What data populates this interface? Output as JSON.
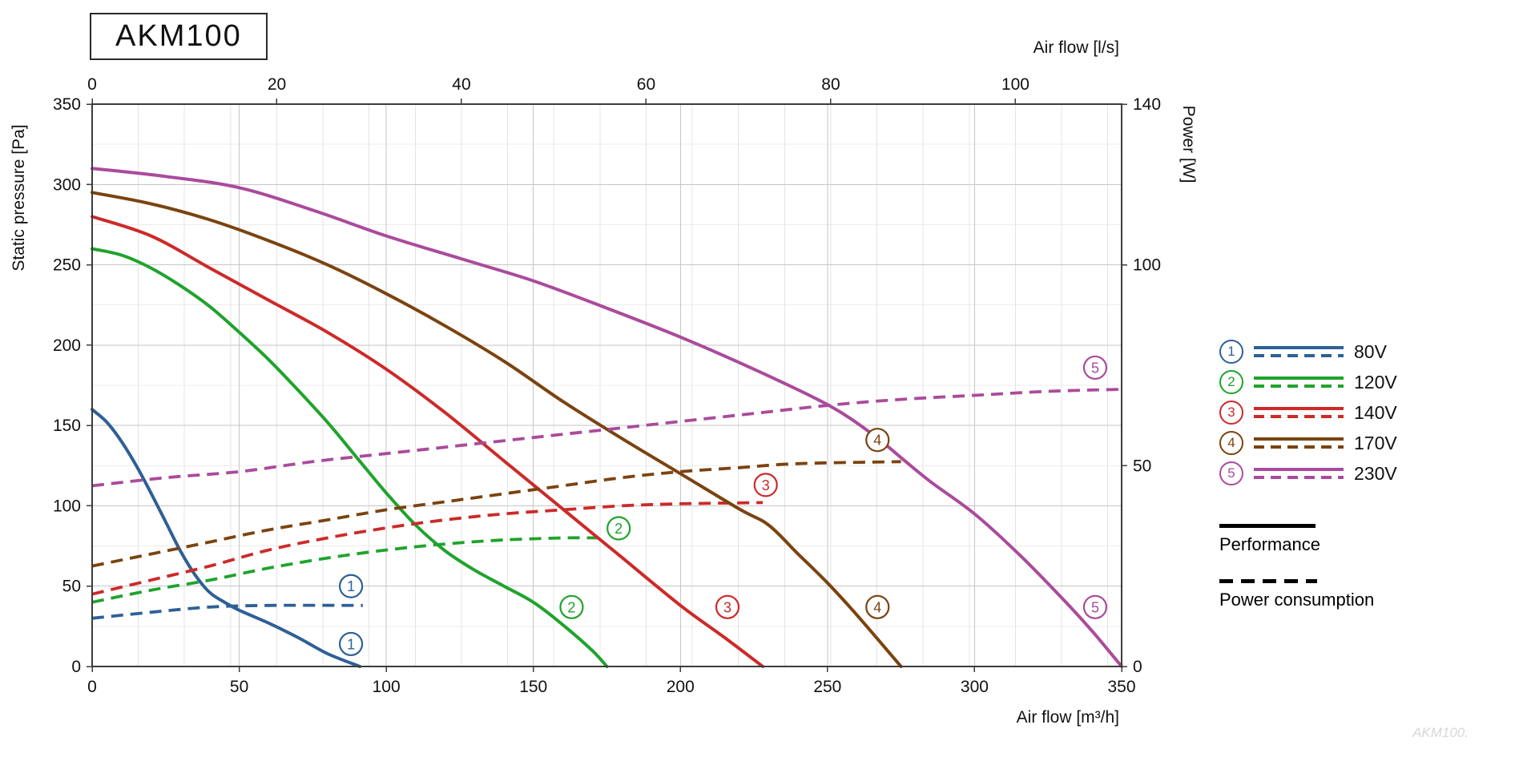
{
  "title_box": {
    "label": "AKM100"
  },
  "watermark": "AKM100.",
  "chart_data": {
    "type": "line",
    "title": "AKM100",
    "axes": {
      "bottom": {
        "label": "Air flow [m³/h]",
        "min": 0,
        "max": 350,
        "ticks": [
          0,
          50,
          100,
          150,
          200,
          250,
          300,
          350
        ]
      },
      "top": {
        "label": "Air flow [l/s]",
        "ticks": [
          0,
          20,
          40,
          60,
          80,
          100
        ],
        "scale_max": 111.5
      },
      "left": {
        "label": "Static pressure [Pa]",
        "min": 0,
        "max": 350,
        "ticks": [
          0,
          50,
          100,
          150,
          200,
          250,
          300,
          350
        ]
      },
      "right": {
        "label": "Power [W]",
        "min": 0,
        "max": 140,
        "ticks": [
          0,
          50,
          100,
          140
        ]
      }
    },
    "grid": {
      "h_major": 50,
      "h_minor": 25,
      "v_minor_ls": 5
    },
    "series": [
      {
        "num": 1,
        "name": "80V",
        "color": "#2e6096",
        "performance": [
          [
            0,
            160
          ],
          [
            5,
            152
          ],
          [
            10,
            140
          ],
          [
            15,
            125
          ],
          [
            20,
            108
          ],
          [
            25,
            90
          ],
          [
            30,
            72
          ],
          [
            35,
            57
          ],
          [
            40,
            46
          ],
          [
            45,
            40
          ],
          [
            50,
            35
          ],
          [
            60,
            27
          ],
          [
            70,
            18
          ],
          [
            80,
            8
          ],
          [
            91,
            0
          ]
        ],
        "power_w": [
          [
            0,
            12
          ],
          [
            20,
            13.5
          ],
          [
            40,
            14.8
          ],
          [
            60,
            15.2
          ],
          [
            92,
            15.2
          ]
        ]
      },
      {
        "num": 2,
        "name": "120V",
        "color": "#1fa32c",
        "performance": [
          [
            0,
            260
          ],
          [
            10,
            256
          ],
          [
            20,
            248
          ],
          [
            30,
            237
          ],
          [
            40,
            224
          ],
          [
            50,
            208
          ],
          [
            60,
            191
          ],
          [
            70,
            172
          ],
          [
            80,
            152
          ],
          [
            90,
            130
          ],
          [
            100,
            108
          ],
          [
            110,
            88
          ],
          [
            120,
            72
          ],
          [
            130,
            60
          ],
          [
            140,
            50
          ],
          [
            150,
            40
          ],
          [
            160,
            26
          ],
          [
            170,
            10
          ],
          [
            175,
            0
          ]
        ],
        "power_w": [
          [
            0,
            16
          ],
          [
            20,
            19
          ],
          [
            40,
            21.5
          ],
          [
            60,
            24.5
          ],
          [
            80,
            27
          ],
          [
            100,
            29
          ],
          [
            120,
            30.5
          ],
          [
            140,
            31.5
          ],
          [
            160,
            32
          ],
          [
            172,
            32
          ]
        ]
      },
      {
        "num": 3,
        "name": "140V",
        "color": "#cc2a29",
        "performance": [
          [
            0,
            280
          ],
          [
            20,
            268
          ],
          [
            40,
            248
          ],
          [
            60,
            228
          ],
          [
            80,
            208
          ],
          [
            100,
            185
          ],
          [
            120,
            158
          ],
          [
            140,
            128
          ],
          [
            160,
            98
          ],
          [
            180,
            68
          ],
          [
            200,
            38
          ],
          [
            215,
            18
          ],
          [
            228,
            0
          ]
        ],
        "power_w": [
          [
            0,
            18
          ],
          [
            20,
            21.5
          ],
          [
            40,
            25
          ],
          [
            60,
            29
          ],
          [
            80,
            32
          ],
          [
            100,
            34.5
          ],
          [
            120,
            36.5
          ],
          [
            140,
            38
          ],
          [
            160,
            39
          ],
          [
            180,
            40
          ],
          [
            200,
            40.5
          ],
          [
            228,
            40.8
          ]
        ]
      },
      {
        "num": 4,
        "name": "170V",
        "color": "#7b430f",
        "performance": [
          [
            0,
            295
          ],
          [
            20,
            288
          ],
          [
            40,
            278
          ],
          [
            60,
            265
          ],
          [
            80,
            250
          ],
          [
            100,
            232
          ],
          [
            120,
            212
          ],
          [
            140,
            190
          ],
          [
            160,
            165
          ],
          [
            180,
            142
          ],
          [
            200,
            120
          ],
          [
            220,
            98
          ],
          [
            230,
            88
          ],
          [
            240,
            70
          ],
          [
            250,
            52
          ],
          [
            260,
            32
          ],
          [
            275,
            0
          ]
        ],
        "power_w": [
          [
            0,
            25
          ],
          [
            20,
            28
          ],
          [
            40,
            31
          ],
          [
            60,
            34
          ],
          [
            80,
            36.5
          ],
          [
            100,
            39
          ],
          [
            120,
            41
          ],
          [
            140,
            43
          ],
          [
            160,
            45
          ],
          [
            180,
            47
          ],
          [
            200,
            48.5
          ],
          [
            220,
            49.5
          ],
          [
            240,
            50.5
          ],
          [
            275,
            51
          ]
        ]
      },
      {
        "num": 5,
        "name": "230V",
        "color": "#aa4b9b",
        "performance": [
          [
            0,
            310
          ],
          [
            25,
            305
          ],
          [
            50,
            298
          ],
          [
            75,
            284
          ],
          [
            100,
            268
          ],
          [
            125,
            254
          ],
          [
            150,
            240
          ],
          [
            175,
            223
          ],
          [
            200,
            205
          ],
          [
            225,
            185
          ],
          [
            250,
            163
          ],
          [
            265,
            145
          ],
          [
            275,
            130
          ],
          [
            285,
            115
          ],
          [
            300,
            95
          ],
          [
            315,
            70
          ],
          [
            330,
            42
          ],
          [
            340,
            22
          ],
          [
            350,
            0
          ]
        ],
        "power_w": [
          [
            0,
            45
          ],
          [
            25,
            47
          ],
          [
            50,
            48.5
          ],
          [
            75,
            51
          ],
          [
            100,
            53
          ],
          [
            125,
            55
          ],
          [
            150,
            57
          ],
          [
            175,
            59
          ],
          [
            200,
            61
          ],
          [
            225,
            63
          ],
          [
            250,
            65
          ],
          [
            275,
            66.5
          ],
          [
            300,
            67.5
          ],
          [
            325,
            68.5
          ],
          [
            350,
            69
          ]
        ]
      }
    ],
    "annotations": [
      {
        "num": 1,
        "x": 88,
        "y": 50
      },
      {
        "num": 1,
        "x": 88,
        "y": 14
      },
      {
        "num": 2,
        "x": 179,
        "y": 86
      },
      {
        "num": 2,
        "x": 163,
        "y": 37
      },
      {
        "num": 3,
        "x": 229,
        "y": 113
      },
      {
        "num": 3,
        "x": 216,
        "y": 37
      },
      {
        "num": 4,
        "x": 267,
        "y": 141
      },
      {
        "num": 4,
        "x": 267,
        "y": 37
      },
      {
        "num": 5,
        "x": 341,
        "y": 186
      },
      {
        "num": 5,
        "x": 341,
        "y": 37
      }
    ]
  },
  "legend": {
    "entries": [
      {
        "num": 1,
        "label": "80V",
        "color": "#2e6096"
      },
      {
        "num": 2,
        "label": "120V",
        "color": "#1fa32c"
      },
      {
        "num": 3,
        "label": "140V",
        "color": "#cc2a29"
      },
      {
        "num": 4,
        "label": "170V",
        "color": "#7b430f"
      },
      {
        "num": 5,
        "label": "230V",
        "color": "#aa4b9b"
      }
    ],
    "performance_label": "Performance",
    "power_label": "Power consumption"
  }
}
